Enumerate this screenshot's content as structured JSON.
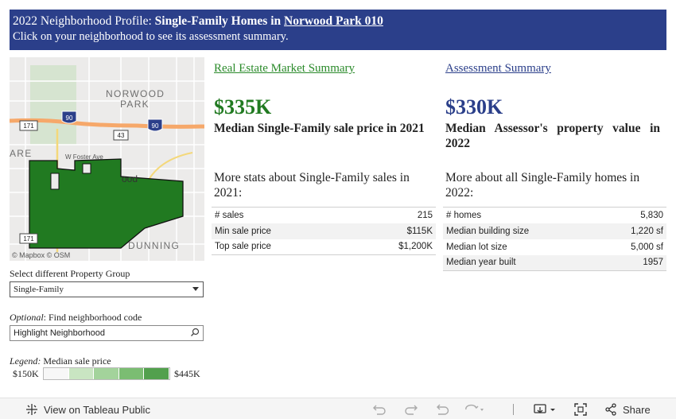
{
  "header": {
    "line1_prefix": "2022 Neighborhood Profile:",
    "line1_property_type": "Single-Family Homes",
    "line1_in": "in",
    "line1_neighborhood": "Norwood Park 010",
    "line2": "Click on your neighborhood to see its assessment summary."
  },
  "map": {
    "labels": {
      "norwood": "NORWOOD",
      "park": "PARK",
      "are": "ARE",
      "dunning": "DUNNING",
      "wfoster": "W Foster Ave",
      "wood": "ood"
    },
    "shields": {
      "i90_a": "90",
      "i90_b": "90",
      "r43": "43",
      "r171_a": "171",
      "r171_b": "171"
    },
    "attribution": "© Mapbox  © OSM",
    "neighborhood_color": "#217a21"
  },
  "market": {
    "link": "Real Estate Market Summary",
    "link_color": "#2a8a2a",
    "value": "$335K",
    "value_color": "#217a21",
    "caption": "Median Single-Family sale price in 2021",
    "more": "More stats about Single-Family sales in 2021:",
    "rows": [
      {
        "label": "# sales",
        "value": "215"
      },
      {
        "label": "Min sale price",
        "value": "$115K"
      },
      {
        "label": "Top sale price",
        "value": "$1,200K"
      }
    ]
  },
  "assessment": {
    "link": "Assessment Summary",
    "link_color": "#2b3f8a",
    "value": "$330K",
    "value_color": "#2b3f8a",
    "caption": "Median Assessor's property value in 2022",
    "more": "More about all Single-Family homes in 2022:",
    "rows": [
      {
        "label": "# homes",
        "value": "5,830"
      },
      {
        "label": "Median building size",
        "value": "1,220 sf"
      },
      {
        "label": "Median lot size",
        "value": "5,000 sf"
      },
      {
        "label": "Median year built",
        "value": "1957"
      }
    ]
  },
  "controls": {
    "group_label": "Select different Property Group",
    "group_value": "Single-Family",
    "find_label_em": "Optional",
    "find_label_rest": ": Find neighborhood code",
    "search_placeholder": "Highlight Neighborhood"
  },
  "legend": {
    "title_em": "Legend:",
    "title_rest": " Median sale price",
    "min": "$150K",
    "max": "$445K",
    "colors": [
      "#f7f7f7",
      "#c9e5c2",
      "#a3d39b",
      "#7bbd72",
      "#52a04d"
    ]
  },
  "toolbar": {
    "view_label": "View on Tableau Public",
    "share_label": "Share"
  }
}
